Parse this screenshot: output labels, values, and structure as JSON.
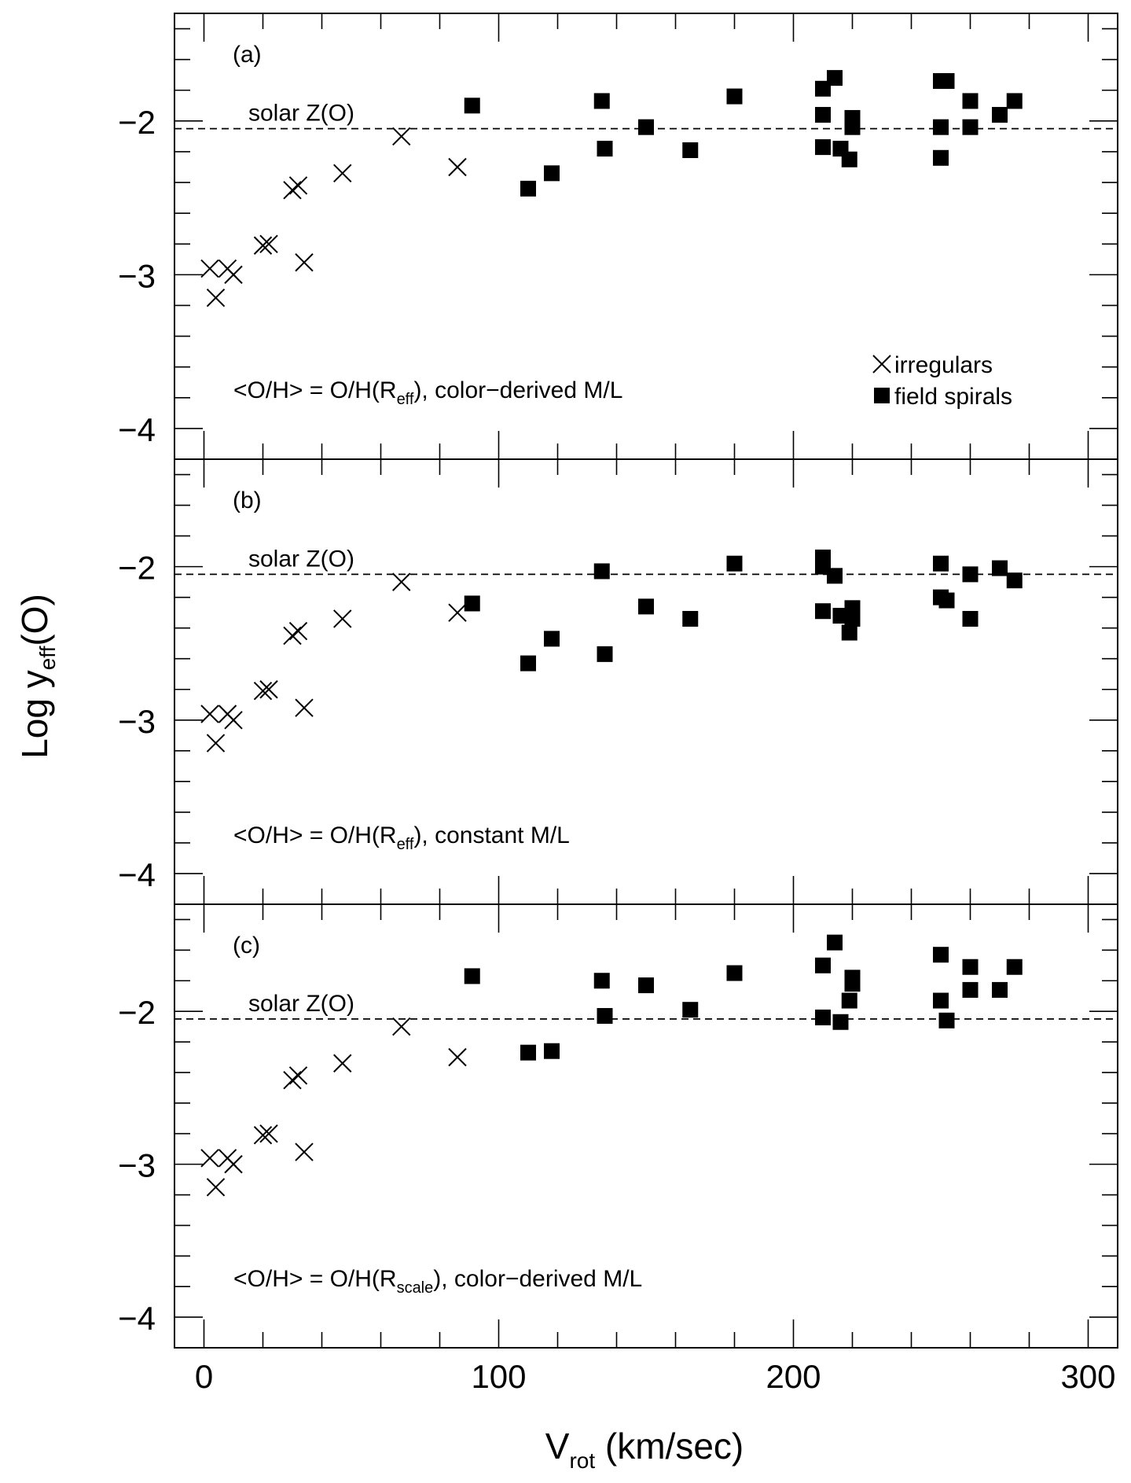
{
  "chart_data": {
    "type": "scatter",
    "xlabel": "V",
    "xlabel_sub": "rot",
    "xlabel_unit": " (km/sec)",
    "ylabel": "Log y",
    "ylabel_sub": "eff",
    "ylabel_tail": "(O)",
    "xlim": [
      -10,
      310
    ],
    "ylim": [
      -4.2,
      -1.3
    ],
    "xticks": [
      0,
      100,
      200,
      300
    ],
    "xtick_labels": [
      "0",
      "100",
      "200",
      "300"
    ],
    "yticks": [
      -4,
      -3,
      -2
    ],
    "ytick_labels": [
      "−4",
      "−3",
      "−2"
    ],
    "reference_line": {
      "y": -2.05,
      "label": "solar Z(O)",
      "style": "dashed"
    },
    "legend": {
      "placement": "lower-right of top panel",
      "entries": [
        {
          "marker": "cross",
          "label": "irregulars"
        },
        {
          "marker": "filled-square",
          "label": "field spirals"
        }
      ]
    },
    "panels": [
      {
        "tag": "(a)",
        "caption_pre": "<O/H> = O/H(R",
        "caption_sub": "eff",
        "caption_post": "), color−derived M/L",
        "series": [
          {
            "name": "irregulars",
            "marker": "cross",
            "x": [
              2,
              4,
              8,
              10,
              20,
              22,
              30,
              32,
              34,
              47,
              67,
              86
            ],
            "y": [
              -2.96,
              -3.15,
              -2.96,
              -3.0,
              -2.81,
              -2.8,
              -2.45,
              -2.42,
              -2.92,
              -2.34,
              -2.1,
              -2.3
            ]
          },
          {
            "name": "field spirals",
            "marker": "filled-square",
            "x": [
              91,
              110,
              118,
              135,
              136,
              150,
              165,
              180,
              210,
              210,
              210,
              214,
              216,
              219,
              220,
              220,
              250,
              250,
              250,
              252,
              260,
              260,
              270,
              275
            ],
            "y": [
              -1.9,
              -2.44,
              -2.34,
              -1.87,
              -2.18,
              -2.04,
              -2.19,
              -1.84,
              -1.79,
              -1.96,
              -2.17,
              -1.72,
              -2.18,
              -2.25,
              -1.98,
              -2.04,
              -1.74,
              -2.04,
              -2.24,
              -1.74,
              -1.87,
              -2.04,
              -1.96,
              -1.87
            ]
          }
        ]
      },
      {
        "tag": "(b)",
        "caption_pre": "<O/H> = O/H(R",
        "caption_sub": "eff",
        "caption_post": "), constant M/L",
        "series": [
          {
            "name": "irregulars",
            "marker": "cross",
            "x": [
              2,
              4,
              8,
              10,
              20,
              22,
              30,
              32,
              34,
              47,
              67,
              86
            ],
            "y": [
              -2.96,
              -3.15,
              -2.96,
              -3.0,
              -2.81,
              -2.8,
              -2.45,
              -2.42,
              -2.92,
              -2.34,
              -2.1,
              -2.3
            ]
          },
          {
            "name": "field spirals",
            "marker": "filled-square",
            "x": [
              91,
              110,
              118,
              135,
              136,
              150,
              165,
              180,
              210,
              210,
              210,
              214,
              216,
              219,
              220,
              220,
              250,
              250,
              252,
              260,
              260,
              270,
              275
            ],
            "y": [
              -2.24,
              -2.63,
              -2.47,
              -2.03,
              -2.57,
              -2.26,
              -2.34,
              -1.98,
              -1.94,
              -2.0,
              -2.29,
              -2.06,
              -2.32,
              -2.43,
              -2.27,
              -2.34,
              -1.98,
              -2.2,
              -2.22,
              -2.05,
              -2.34,
              -2.01,
              -2.09
            ]
          }
        ]
      },
      {
        "tag": "(c)",
        "caption_pre": "<O/H> = O/H(R",
        "caption_sub": "scale",
        "caption_post": "), color−derived M/L",
        "series": [
          {
            "name": "irregulars",
            "marker": "cross",
            "x": [
              2,
              4,
              8,
              10,
              20,
              22,
              30,
              32,
              34,
              47,
              67,
              86
            ],
            "y": [
              -2.96,
              -3.15,
              -2.96,
              -3.0,
              -2.81,
              -2.8,
              -2.45,
              -2.42,
              -2.92,
              -2.34,
              -2.1,
              -2.3
            ]
          },
          {
            "name": "field spirals",
            "marker": "filled-square",
            "x": [
              91,
              110,
              118,
              135,
              136,
              150,
              165,
              180,
              210,
              210,
              214,
              216,
              219,
              220,
              220,
              250,
              250,
              252,
              260,
              260,
              270,
              275
            ],
            "y": [
              -1.77,
              -2.27,
              -2.26,
              -1.8,
              -2.03,
              -1.83,
              -1.99,
              -1.75,
              -1.7,
              -2.04,
              -1.55,
              -2.07,
              -1.93,
              -1.78,
              -1.82,
              -1.63,
              -1.93,
              -2.06,
              -1.71,
              -1.86,
              -1.86,
              -1.71
            ]
          }
        ]
      }
    ]
  }
}
